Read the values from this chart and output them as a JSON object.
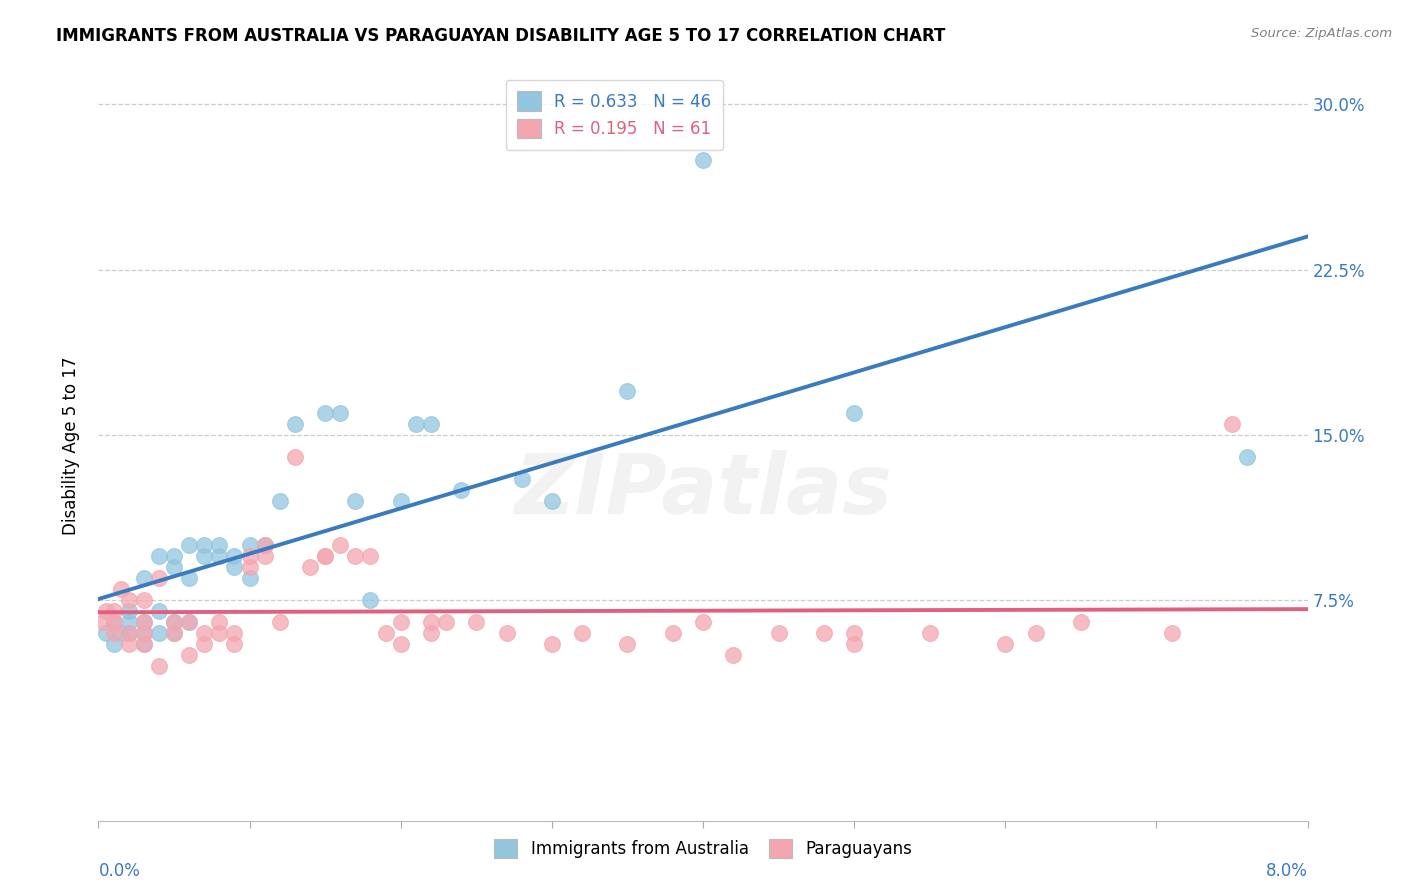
{
  "title": "IMMIGRANTS FROM AUSTRALIA VS PARAGUAYAN DISABILITY AGE 5 TO 17 CORRELATION CHART",
  "source": "Source: ZipAtlas.com",
  "ylabel": "Disability Age 5 to 17",
  "yticks_labels": [
    "7.5%",
    "15.0%",
    "22.5%",
    "30.0%"
  ],
  "ytick_vals": [
    0.075,
    0.15,
    0.225,
    0.3
  ],
  "xlim": [
    0.0,
    0.08
  ],
  "ylim": [
    -0.025,
    0.315
  ],
  "legend_blue_R": "0.633",
  "legend_blue_N": "46",
  "legend_pink_R": "0.195",
  "legend_pink_N": "61",
  "blue_color": "#92c5de",
  "pink_color": "#f4a6b0",
  "blue_line_color": "#3a7abf",
  "pink_line_color": "#e06080",
  "watermark": "ZIPatlas",
  "blue_scatter_x": [
    0.0005,
    0.001,
    0.001,
    0.0015,
    0.002,
    0.002,
    0.002,
    0.003,
    0.003,
    0.003,
    0.003,
    0.004,
    0.004,
    0.004,
    0.005,
    0.005,
    0.005,
    0.005,
    0.006,
    0.006,
    0.006,
    0.007,
    0.007,
    0.008,
    0.008,
    0.009,
    0.009,
    0.01,
    0.01,
    0.011,
    0.012,
    0.013,
    0.015,
    0.016,
    0.017,
    0.018,
    0.02,
    0.021,
    0.022,
    0.024,
    0.028,
    0.03,
    0.035,
    0.04,
    0.05,
    0.076
  ],
  "blue_scatter_y": [
    0.06,
    0.055,
    0.065,
    0.06,
    0.06,
    0.065,
    0.07,
    0.055,
    0.06,
    0.065,
    0.085,
    0.06,
    0.07,
    0.095,
    0.06,
    0.065,
    0.09,
    0.095,
    0.065,
    0.085,
    0.1,
    0.095,
    0.1,
    0.095,
    0.1,
    0.09,
    0.095,
    0.1,
    0.085,
    0.1,
    0.12,
    0.155,
    0.16,
    0.16,
    0.12,
    0.075,
    0.12,
    0.155,
    0.155,
    0.125,
    0.13,
    0.12,
    0.17,
    0.275,
    0.16,
    0.14
  ],
  "pink_scatter_x": [
    0.0003,
    0.0005,
    0.001,
    0.001,
    0.001,
    0.0015,
    0.002,
    0.002,
    0.002,
    0.003,
    0.003,
    0.003,
    0.003,
    0.004,
    0.004,
    0.005,
    0.005,
    0.006,
    0.006,
    0.007,
    0.007,
    0.008,
    0.008,
    0.009,
    0.009,
    0.01,
    0.01,
    0.011,
    0.011,
    0.012,
    0.013,
    0.014,
    0.015,
    0.015,
    0.016,
    0.017,
    0.018,
    0.019,
    0.02,
    0.02,
    0.022,
    0.022,
    0.023,
    0.025,
    0.027,
    0.03,
    0.032,
    0.035,
    0.038,
    0.04,
    0.042,
    0.045,
    0.048,
    0.05,
    0.05,
    0.055,
    0.06,
    0.062,
    0.065,
    0.071,
    0.075
  ],
  "pink_scatter_y": [
    0.065,
    0.07,
    0.07,
    0.06,
    0.065,
    0.08,
    0.075,
    0.055,
    0.06,
    0.055,
    0.065,
    0.06,
    0.075,
    0.045,
    0.085,
    0.06,
    0.065,
    0.05,
    0.065,
    0.055,
    0.06,
    0.06,
    0.065,
    0.055,
    0.06,
    0.09,
    0.095,
    0.095,
    0.1,
    0.065,
    0.14,
    0.09,
    0.095,
    0.095,
    0.1,
    0.095,
    0.095,
    0.06,
    0.055,
    0.065,
    0.06,
    0.065,
    0.065,
    0.065,
    0.06,
    0.055,
    0.06,
    0.055,
    0.06,
    0.065,
    0.05,
    0.06,
    0.06,
    0.055,
    0.06,
    0.06,
    0.055,
    0.06,
    0.065,
    0.06,
    0.155
  ]
}
